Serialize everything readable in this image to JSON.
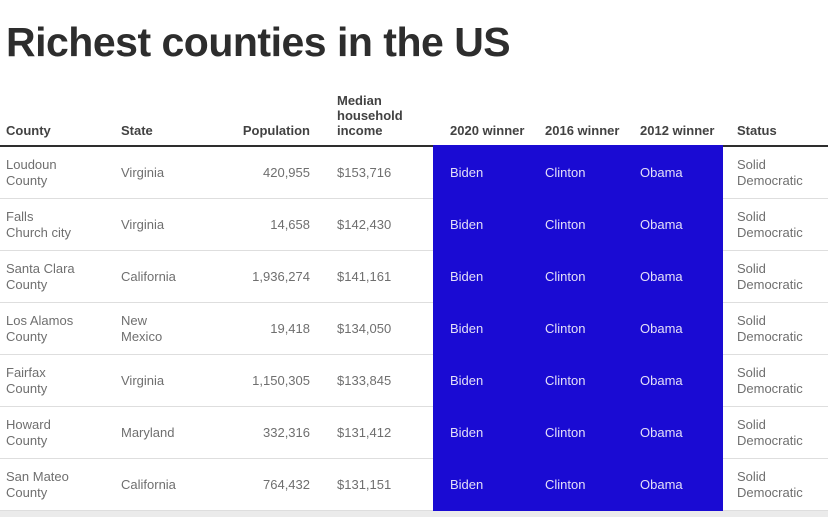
{
  "chart_data": {
    "type": "table",
    "title": "Richest counties in the US",
    "columns": [
      "County",
      "State",
      "Population",
      "Median household income",
      "2020 winner",
      "2016 winner",
      "2012 winner",
      "Status"
    ],
    "rows": [
      [
        "Loudoun\nCounty",
        "Virginia",
        "420,955",
        "$153,716",
        "Biden",
        "Clinton",
        "Obama",
        "Solid\nDemocratic"
      ],
      [
        "Falls\nChurch city",
        "Virginia",
        "14,658",
        "$142,430",
        "Biden",
        "Clinton",
        "Obama",
        "Solid\nDemocratic"
      ],
      [
        "Santa Clara\nCounty",
        "California",
        "1,936,274",
        "$141,161",
        "Biden",
        "Clinton",
        "Obama",
        "Solid\nDemocratic"
      ],
      [
        "Los Alamos\nCounty",
        "New\nMexico",
        "19,418",
        "$134,050",
        "Biden",
        "Clinton",
        "Obama",
        "Solid\nDemocratic"
      ],
      [
        "Fairfax\nCounty",
        "Virginia",
        "1,150,305",
        "$133,845",
        "Biden",
        "Clinton",
        "Obama",
        "Solid\nDemocratic"
      ],
      [
        "Howard\nCounty",
        "Maryland",
        "332,316",
        "$131,412",
        "Biden",
        "Clinton",
        "Obama",
        "Solid\nDemocratic"
      ],
      [
        "San Mateo\nCounty",
        "California",
        "764,432",
        "$131,151",
        "Biden",
        "Clinton",
        "Obama",
        "Solid\nDemocratic"
      ]
    ],
    "highlighted_columns": [
      "2020 winner",
      "2016 winner",
      "2012 winner"
    ],
    "layout": {
      "highlight_color": "#1A0BD3",
      "highlight_text_color": "#E3DFF8",
      "legend_position": "none",
      "grid": "row-dividers"
    }
  }
}
